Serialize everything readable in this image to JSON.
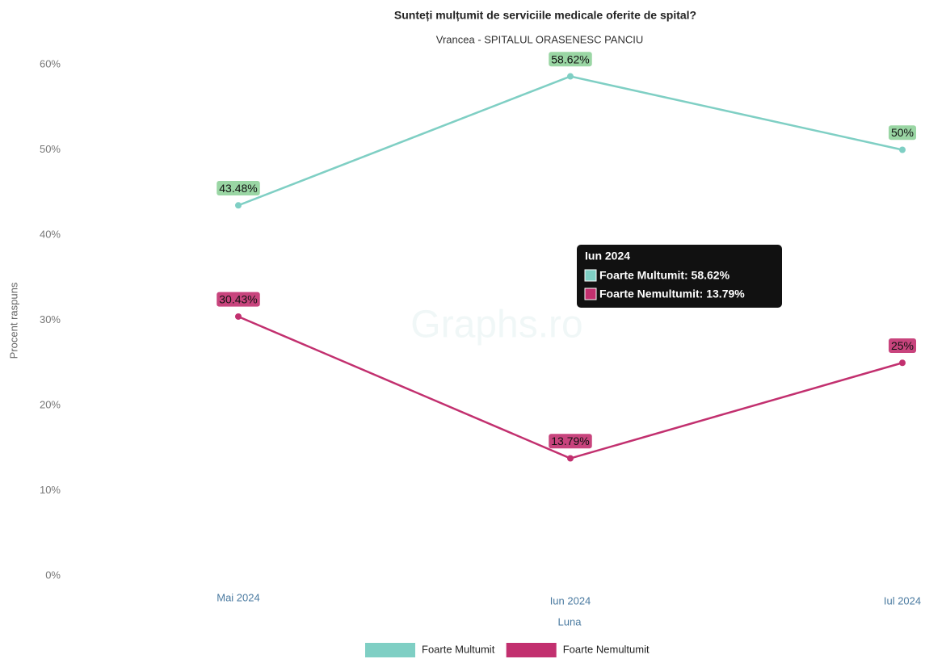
{
  "chart_data": {
    "type": "line",
    "title": "Sunteți mulțumit de serviciile medicale oferite de spital?",
    "subtitle": "Vrancea - SPITALUL ORASENESC PANCIU",
    "x_label": "Luna",
    "y_label": "Procent raspuns",
    "watermark": "Graphs.ro",
    "categories": [
      "Mai 2024",
      "Iun 2024",
      "Iul 2024"
    ],
    "series": [
      {
        "name": "Foarte Multumit",
        "color": "#7fcfc4",
        "values": [
          43.48,
          58.62,
          50
        ],
        "value_labels": [
          "43.48%",
          "58.62%",
          "50%"
        ]
      },
      {
        "name": "Foarte Nemultumit",
        "color": "#c2306f",
        "values": [
          30.43,
          13.79,
          25
        ],
        "value_labels": [
          "30.43%",
          "13.79%",
          "25%"
        ]
      }
    ],
    "ylim": [
      0,
      60
    ],
    "yticks": [
      {
        "value": 0,
        "label": "0%"
      },
      {
        "value": 10,
        "label": "10%"
      },
      {
        "value": 20,
        "label": "20%"
      },
      {
        "value": 30,
        "label": "30%"
      },
      {
        "value": 40,
        "label": "40%"
      },
      {
        "value": 50,
        "label": "50%"
      },
      {
        "value": 60,
        "label": "60%"
      }
    ],
    "legend": "bottom",
    "tooltip": {
      "title": "Iun 2024",
      "lines": [
        "Foarte Multumit: 58.62%",
        "Foarte Nemultumit: 13.79%"
      ]
    }
  }
}
